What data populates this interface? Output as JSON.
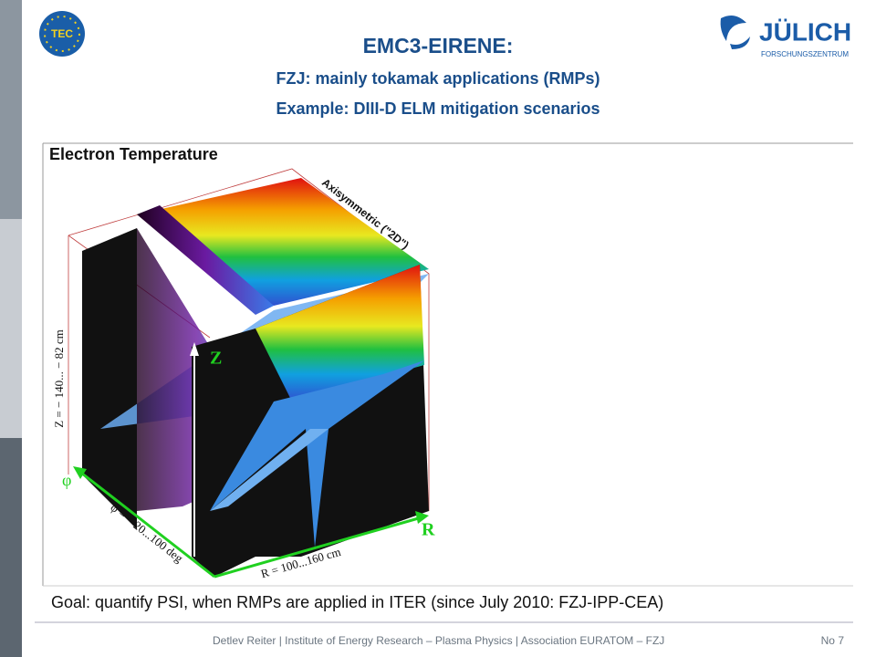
{
  "header": {
    "title": "EMC3-EIRENE:",
    "subtitle": "FZJ:  mainly tokamak applications (RMPs)",
    "example": "Example: DIII-D ELM mitigation scenarios",
    "logo_left": "TEC",
    "logo_right": "JÜLICH",
    "logo_right_sub": "FORSCHUNGSZENTRUM"
  },
  "figure": {
    "title": "Electron Temperature",
    "annotation": "Axisymmetric (\"2D\")",
    "z_range": "Z = − 140... − 82 cm",
    "phi_range": "φ = − 20...100 deg",
    "r_range": "R = 100...160 cm",
    "axis_z": "Z",
    "axis_r": "R",
    "axis_phi": "φ"
  },
  "goal": "Goal: quantify PSI, when RMPs are applied in ITER (since July 2010: FZJ-IPP-CEA)",
  "footer": {
    "text": "Detlev Reiter | Institute of Energy Research – Plasma Physics | Association EURATOM – FZJ",
    "page": "No 7"
  }
}
